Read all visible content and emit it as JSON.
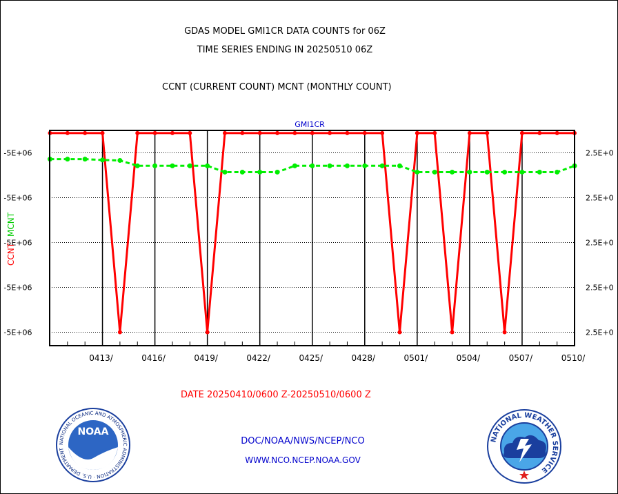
{
  "header": {
    "title_line1": "GDAS MODEL GMI1CR DATA COUNTS for 06Z",
    "title_line2": "TIME SERIES ENDING IN 20250510 06Z",
    "title_line3": "CCNT (CURRENT COUNT) MCNT (MONTHLY COUNT)"
  },
  "footer": {
    "date_range": "DATE 20250410/0600 Z-20250510/0600 Z",
    "credit_line1": "DOC/NOAA/NWS/NCEP/NCO",
    "credit_line2": "WWW.NCO.NCEP.NOAA.GOV"
  },
  "logos": {
    "noaa_label": "NOAA",
    "noaa_ring_text": "NATIONAL OCEANIC AND ATMOSPHERIC ADMINISTRATION · U.S. DEPARTMENT OF COMMERCE",
    "nws_ring_text": "NATIONAL WEATHER SERVICE"
  },
  "colors": {
    "ccnt": "#ff0000",
    "mcnt": "#00ee00",
    "plot_title": "#0000cc",
    "grid": "#000000"
  },
  "chart_data": {
    "type": "line",
    "plot_title": "GMI1CR",
    "ylabel_left_series1": "CCNT",
    "ylabel_left_series2": "MCNT",
    "x_tick_labels": [
      "0413/",
      "0416/",
      "0419/",
      "0422/",
      "0425/",
      "0428/",
      "0501/",
      "0504/",
      "0507/",
      "0510/"
    ],
    "x_tick_days": [
      3,
      6,
      9,
      12,
      15,
      18,
      21,
      24,
      27,
      30
    ],
    "x_axis_start": "20250410/0600",
    "x_range_days": [
      0,
      30
    ],
    "y_tick_labels_left": [
      "-5E+06",
      "-5E+06",
      "-5E+06",
      "-5E+06",
      "-5E+06"
    ],
    "y_tick_labels_right": [
      "2.5E+0",
      "2.5E+0",
      "2.5E+0",
      "2.5E+0",
      "2.5E+0"
    ],
    "y_levels": [
      4,
      3,
      2,
      1,
      0
    ],
    "y_range": [
      -0.3,
      4.5
    ],
    "grid": true,
    "series": [
      {
        "name": "CCNT",
        "x": [
          0,
          1,
          2,
          3,
          4,
          5,
          6,
          7,
          8,
          9,
          10,
          11,
          12,
          13,
          14,
          15,
          16,
          17,
          18,
          19,
          20,
          21,
          22,
          23,
          24,
          25,
          26,
          27,
          28,
          29,
          30
        ],
        "values": [
          4.44,
          4.44,
          4.44,
          4.44,
          0,
          4.44,
          4.44,
          4.44,
          4.44,
          0,
          4.44,
          4.44,
          4.44,
          4.44,
          4.44,
          4.44,
          4.44,
          4.44,
          4.44,
          4.44,
          0,
          4.44,
          4.44,
          0,
          4.44,
          4.44,
          0,
          4.44,
          4.44,
          4.44,
          4.44
        ]
      },
      {
        "name": "MCNT",
        "x": [
          0,
          1,
          2,
          3,
          4,
          5,
          6,
          7,
          8,
          9,
          10,
          11,
          12,
          13,
          14,
          15,
          16,
          17,
          18,
          19,
          20,
          21,
          22,
          23,
          24,
          25,
          26,
          27,
          28,
          29,
          30
        ],
        "values": [
          3.86,
          3.86,
          3.86,
          3.84,
          3.83,
          3.71,
          3.71,
          3.71,
          3.71,
          3.71,
          3.57,
          3.57,
          3.57,
          3.57,
          3.71,
          3.71,
          3.71,
          3.71,
          3.71,
          3.71,
          3.71,
          3.57,
          3.57,
          3.57,
          3.57,
          3.57,
          3.57,
          3.57,
          3.57,
          3.57,
          3.71
        ]
      }
    ]
  }
}
